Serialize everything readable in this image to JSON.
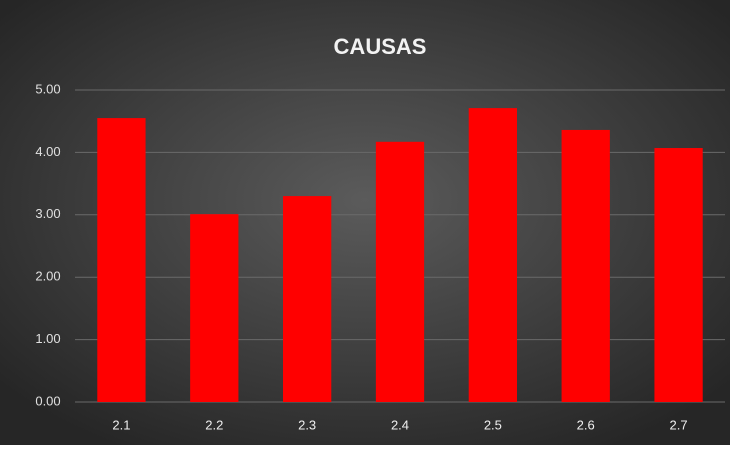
{
  "chart_data": {
    "type": "bar",
    "title": "CAUSAS",
    "categories": [
      "2.1",
      "2.2",
      "2.3",
      "2.4",
      "2.5",
      "2.6",
      "2.7"
    ],
    "values": [
      4.55,
      3.01,
      3.3,
      4.17,
      4.71,
      4.36,
      4.07
    ],
    "color": "#ff0000",
    "ylim": [
      0,
      5
    ],
    "yticks": [
      {
        "value": 0,
        "label": "0.00"
      },
      {
        "value": 1,
        "label": "1.00"
      },
      {
        "value": 2,
        "label": "2.00"
      },
      {
        "value": 3,
        "label": "3.00"
      },
      {
        "value": 4,
        "label": "4.00"
      },
      {
        "value": 5,
        "label": "5.00"
      }
    ],
    "grid": true
  }
}
